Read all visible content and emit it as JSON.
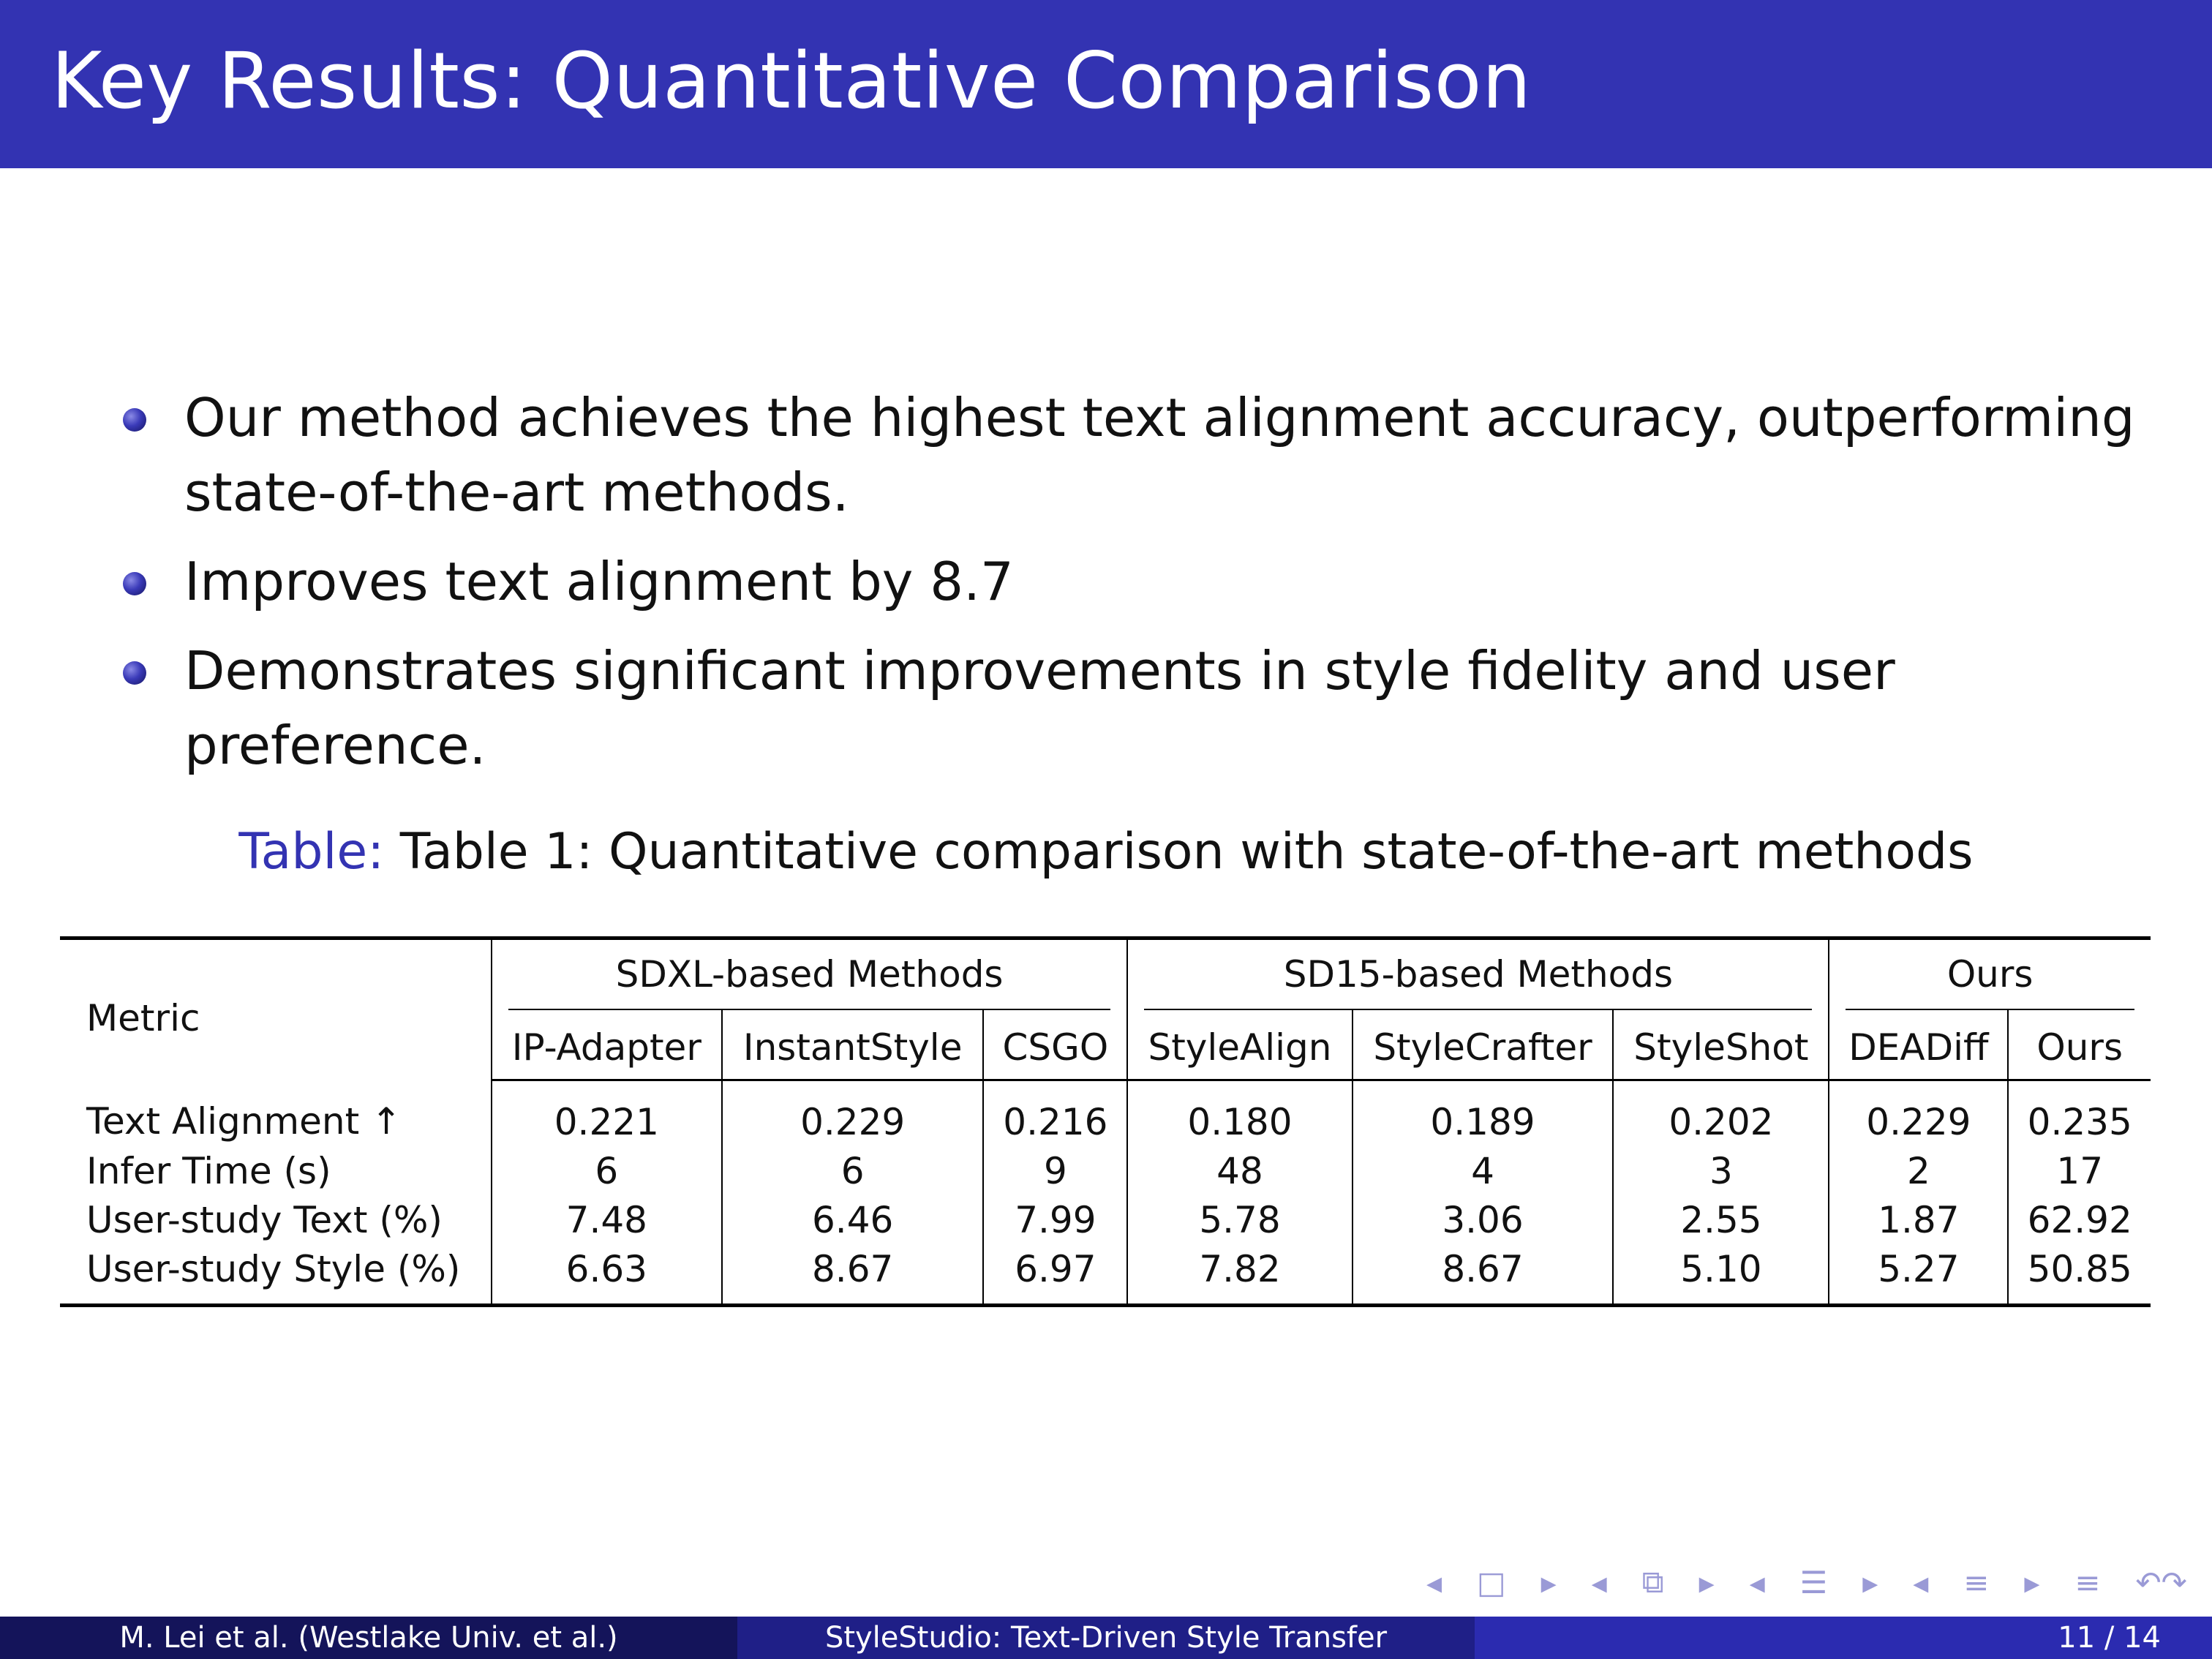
{
  "slide": {
    "title": "Key Results: Quantitative Comparison",
    "bullets": [
      "Our method achieves the highest text alignment accuracy, outperforming state-of-the-art methods.",
      "Improves text alignment by 8.7",
      "Demonstrates significant improvements in style fidelity and user preference."
    ]
  },
  "table": {
    "caption_label": "Table:",
    "caption_text": "Table 1: Quantitative comparison with state-of-the-art methods",
    "metric_header": "Metric",
    "groups": [
      "SDXL-based Methods",
      "SD15-based Methods",
      "Ours"
    ],
    "methods": [
      "IP-Adapter",
      "InstantStyle",
      "CSGO",
      "StyleAlign",
      "StyleCrafter",
      "StyleShot",
      "DEADiff",
      "Ours"
    ],
    "rows": [
      {
        "metric": "Text Alignment ↑",
        "values": [
          "0.221",
          "0.229",
          "0.216",
          "0.180",
          "0.189",
          "0.202",
          "0.229",
          "0.235"
        ]
      },
      {
        "metric": "Infer Time (s)",
        "values": [
          "6",
          "6",
          "9",
          "48",
          "4",
          "3",
          "2",
          "17"
        ]
      },
      {
        "metric": "User-study Text (%)",
        "values": [
          "7.48",
          "6.46",
          "7.99",
          "5.78",
          "3.06",
          "2.55",
          "1.87",
          "62.92"
        ]
      },
      {
        "metric": "User-study Style (%)",
        "values": [
          "6.63",
          "8.67",
          "6.97",
          "7.82",
          "8.67",
          "5.10",
          "5.27",
          "50.85"
        ]
      }
    ]
  },
  "nav_icons": [
    "nav-left-arrow",
    "frame-icon",
    "nav-right-arrow",
    "nav-left-arrow",
    "subsection-icon",
    "nav-right-arrow",
    "nav-left-arrow",
    "section-icon",
    "nav-right-arrow",
    "nav-left-arrow",
    "align-icon",
    "nav-right-arrow",
    "align-icon",
    "undo-search-icon"
  ],
  "footer": {
    "authors": "M. Lei et al.  (Westlake Univ. et al.)",
    "short_title": "StyleStudio: Text-Driven Style Transfer",
    "page": "11 / 14"
  },
  "colors": {
    "header_blue": "#3333b2",
    "footer_dark": "#14145a",
    "footer_mid": "#1f1f87",
    "footer_light": "#2b2bb0"
  }
}
